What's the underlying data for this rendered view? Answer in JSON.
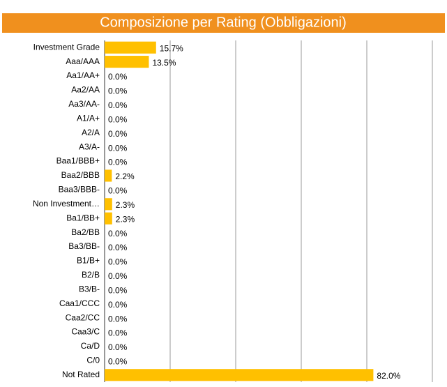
{
  "chart_data": {
    "type": "hbar",
    "title": "Composizione per Rating (Obbligazioni)",
    "categories": [
      "Investment Grade",
      "Aaa/AAA",
      "Aa1/AA+",
      "Aa2/AA",
      "Aa3/AA-",
      "A1/A+",
      "A2/A",
      "A3/A-",
      "Baa1/BBB+",
      "Baa2/BBB",
      "Baa3/BBB-",
      "Non Investment…",
      "Ba1/BB+",
      "Ba2/BB",
      "Ba3/BB-",
      "B1/B+",
      "B2/B",
      "B3/B-",
      "Caa1/CCC",
      "Caa2/CC",
      "Caa3/C",
      "Ca/D",
      "C/0",
      "Not Rated"
    ],
    "values": [
      15.7,
      13.5,
      0,
      0,
      0,
      0,
      0,
      0,
      0,
      2.2,
      0,
      2.3,
      2.3,
      0,
      0,
      0,
      0,
      0,
      0,
      0,
      0,
      0,
      0,
      82.0
    ],
    "value_labels": [
      "15.7%",
      "13.5%",
      "0.0%",
      "0.0%",
      "0.0%",
      "0.0%",
      "0.0%",
      "0.0%",
      "0.0%",
      "2.2%",
      "0.0%",
      "2.3%",
      "2.3%",
      "0.0%",
      "0.0%",
      "0.0%",
      "0.0%",
      "0.0%",
      "0.0%",
      "0.0%",
      "0.0%",
      "0.0%",
      "0.0%",
      "82.0%"
    ],
    "color": "#ffc000",
    "title_background": "#f0901e",
    "xlim": [
      0,
      100
    ],
    "xticks": [
      0,
      20,
      40,
      60,
      80,
      100
    ],
    "grid": true
  }
}
